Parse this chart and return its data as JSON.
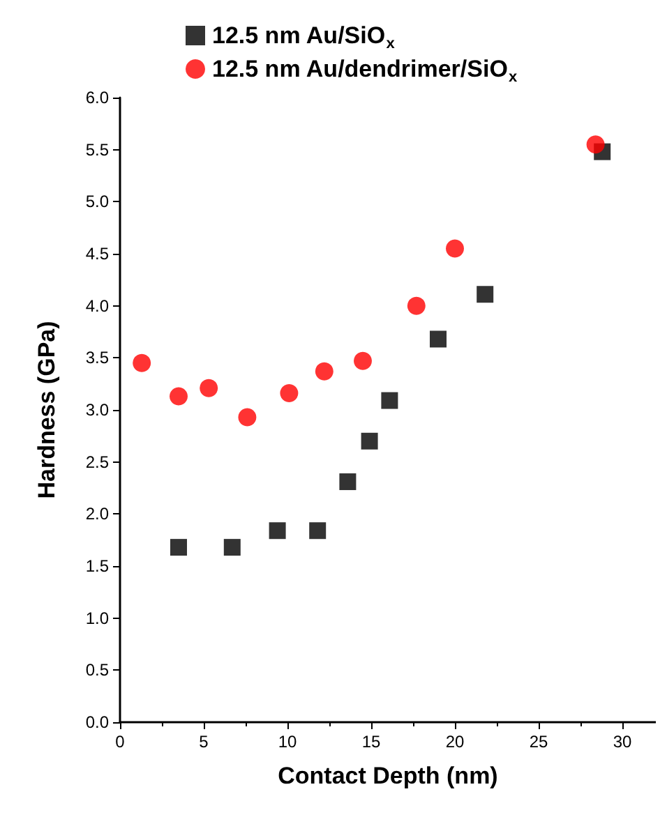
{
  "chart_data": {
    "type": "scatter",
    "xlabel": "Contact Depth (nm)",
    "ylabel": "Hardness (GPa)",
    "xlim": [
      0,
      32
    ],
    "xticks": [
      0,
      5,
      10,
      15,
      20,
      25,
      30
    ],
    "ylim": [
      0,
      6
    ],
    "yticks": [
      {
        "value": 0,
        "label": "0.0"
      },
      {
        "value": 0.5,
        "label": "0.5"
      },
      {
        "value": 1,
        "label": "1.0"
      },
      {
        "value": 1.5,
        "label": "1.5"
      },
      {
        "value": 2,
        "label": "2.0"
      },
      {
        "value": 2.5,
        "label": "2.5"
      },
      {
        "value": 3,
        "label": "3.0"
      },
      {
        "value": 3.5,
        "label": "3.5"
      },
      {
        "value": 4,
        "label": "4.0"
      },
      {
        "value": 4.5,
        "label": "4.5"
      },
      {
        "value": 5,
        "label": "5.0"
      },
      {
        "value": 5.5,
        "label": "5.5"
      },
      {
        "value": 6,
        "label": "6.0"
      }
    ],
    "grid": false,
    "legend": "top",
    "series": [
      {
        "name": "12.5 nm Au/SiO$_{x}$",
        "color": "#000000",
        "marker": "square",
        "x": [
          3.5,
          6.7,
          9.4,
          11.8,
          13.6,
          14.9,
          16.1,
          19.0,
          21.8,
          28.8
        ],
        "values": [
          1.68,
          1.68,
          1.84,
          1.84,
          2.31,
          2.7,
          3.09,
          3.68,
          4.11,
          5.48
        ]
      },
      {
        "name": "12.5 nm Au/dendrimer/SiO$_{x}$",
        "color": "#ff0000",
        "marker": "circle",
        "x": [
          1.3,
          3.5,
          5.3,
          7.6,
          10.1,
          12.2,
          14.5,
          17.7,
          20.0,
          28.4
        ],
        "values": [
          3.45,
          3.13,
          3.21,
          2.93,
          3.16,
          3.37,
          3.47,
          4.0,
          4.55,
          5.55
        ]
      }
    ]
  }
}
